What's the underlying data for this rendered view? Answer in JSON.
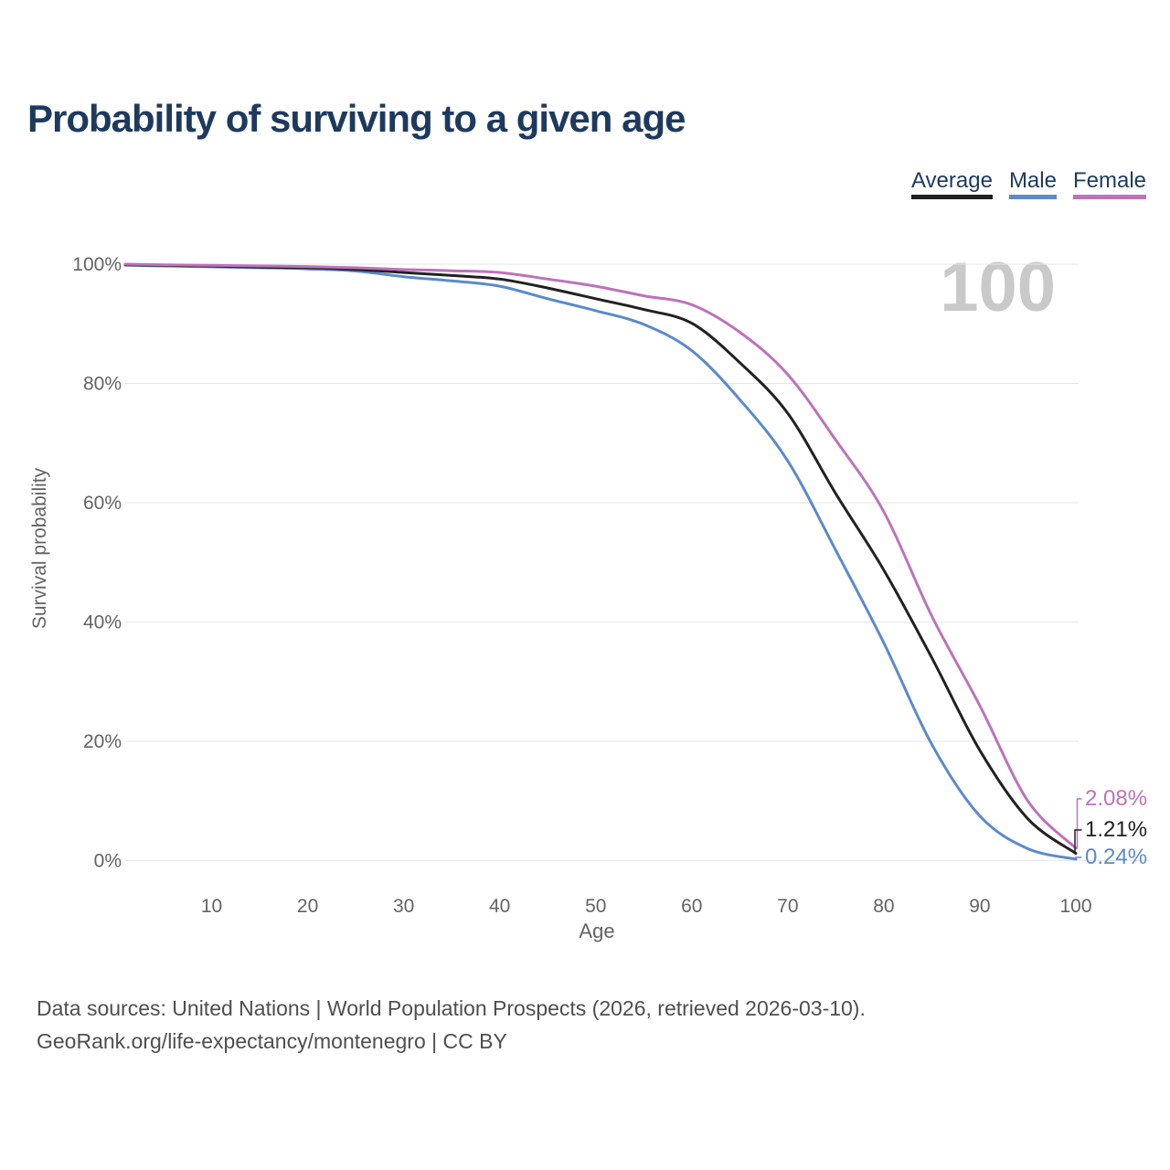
{
  "title": "Probability of surviving to a given age",
  "watermark": "100",
  "legend": [
    {
      "label": "Average",
      "color": "#212121"
    },
    {
      "label": "Male",
      "color": "#5b8ac9"
    },
    {
      "label": "Female",
      "color": "#bd72ba"
    }
  ],
  "end_labels": [
    {
      "text": "2.08%",
      "series": "Female",
      "color": "#bd72ba"
    },
    {
      "text": "1.21%",
      "series": "Average",
      "color": "#212121"
    },
    {
      "text": "0.24%",
      "series": "Male",
      "color": "#5b8ac9"
    }
  ],
  "footer": {
    "line1": "Data sources: United Nations | World Population Prospects (2026, retrieved 2026-03-10).",
    "line2": "GeoRank.org/life-expectancy/montenegro | CC BY"
  },
  "chart_data": {
    "type": "line",
    "title": "Probability of surviving to a given age",
    "xlabel": "Age",
    "ylabel": "Survival probability",
    "xlim": [
      1,
      100
    ],
    "ylim": [
      0,
      100
    ],
    "grid": "horizontal",
    "legend_position": "top-right",
    "x_ticks": [
      10,
      20,
      30,
      40,
      50,
      60,
      70,
      80,
      90,
      100
    ],
    "y_ticks": [
      0,
      20,
      40,
      60,
      80,
      100
    ],
    "y_tick_suffix": "%",
    "x": [
      1,
      5,
      10,
      15,
      20,
      25,
      30,
      35,
      40,
      45,
      50,
      55,
      60,
      65,
      70,
      75,
      80,
      85,
      90,
      95,
      100
    ],
    "series": [
      {
        "name": "Average",
        "color": "#212121",
        "values": [
          99.9,
          99.8,
          99.7,
          99.5,
          99.4,
          99.1,
          98.6,
          98.1,
          97.5,
          96.0,
          94.2,
          92.4,
          90.1,
          83.5,
          75.0,
          61.5,
          48.7,
          34.0,
          18.5,
          7.0,
          1.21
        ]
      },
      {
        "name": "Male",
        "color": "#5b8ac9",
        "values": [
          99.85,
          99.7,
          99.55,
          99.4,
          99.2,
          98.85,
          97.9,
          97.2,
          96.3,
          94.2,
          92.2,
          89.9,
          85.5,
          77.3,
          67.0,
          52.0,
          36.5,
          19.5,
          7.5,
          2.0,
          0.24
        ]
      },
      {
        "name": "Female",
        "color": "#bd72ba",
        "values": [
          100,
          99.9,
          99.8,
          99.7,
          99.6,
          99.4,
          99.1,
          98.9,
          98.6,
          97.5,
          96.3,
          94.7,
          93.2,
          88.6,
          81.5,
          70.5,
          58.5,
          41.0,
          26.0,
          10.0,
          2.08
        ]
      }
    ],
    "end_annotations": [
      {
        "series": "Female",
        "text": "2.08%"
      },
      {
        "series": "Average",
        "text": "1.21%"
      },
      {
        "series": "Male",
        "text": "0.24%"
      }
    ]
  }
}
